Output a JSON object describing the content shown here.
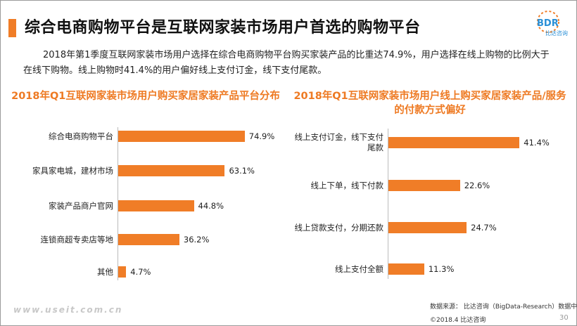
{
  "title": "综合电商购物平台是互联网家装市场用户首选的购物平台",
  "logo": {
    "text": "BDR",
    "sub": "比达咨询"
  },
  "intro": "2018年第1季度互联网家装市场用户选择在综合电商购物平台购买家装产品的比重达74.9%，用户选择在线上购物的比例大于在线下购物。线上购物时41.4%的用户偏好线上支付订金，线下支付尾款。",
  "colors": {
    "accent": "#f07d27",
    "title_bar": "#f07d27",
    "chart_title": "#ee7a23"
  },
  "footer": {
    "watermark": "www.useit.com.cn",
    "source": "数据来源： 比达咨询（BigData-Research）数据中心",
    "copyright": "©2018.4   比达咨询",
    "page": "30"
  },
  "chart_data": [
    {
      "type": "bar",
      "orientation": "horizontal",
      "title": "2018年Q1互联网家装市场用户购买家居家装产品平台分布",
      "categories": [
        "综合电商购物平台",
        "家具家电城，建材市场",
        "家装产品商户官网",
        "连锁商超专卖店等地",
        "其他"
      ],
      "values": [
        74.9,
        63.1,
        44.8,
        36.2,
        4.7
      ],
      "labels": [
        "74.9%",
        "63.1%",
        "44.8%",
        "36.2%",
        "4.7%"
      ],
      "unit": "%",
      "xlim": [
        0,
        80
      ],
      "grid": false,
      "legend": "none",
      "color": "#f07d27"
    },
    {
      "type": "bar",
      "orientation": "horizontal",
      "title": "2018年Q1互联网家装市场用户线上购买家居家装产品/服务的付款方式偏好",
      "categories": [
        "线上支付订金，线下支付尾款",
        "线上下单，线下付款",
        "线上贷款支付，分期还款",
        "线上支付全额"
      ],
      "values": [
        41.4,
        22.6,
        24.7,
        11.3
      ],
      "labels": [
        "41.4%",
        "22.6%",
        "24.7%",
        "11.3%"
      ],
      "unit": "%",
      "xlim": [
        0,
        44
      ],
      "grid": false,
      "legend": "none",
      "color": "#f07d27"
    }
  ]
}
